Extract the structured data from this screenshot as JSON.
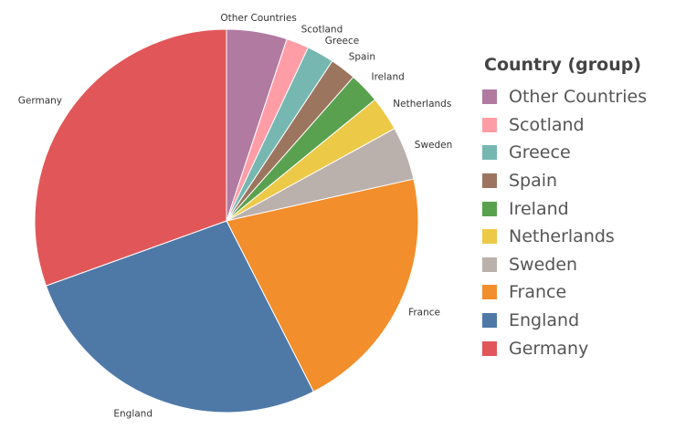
{
  "chart_data": {
    "type": "pie",
    "legend_title": "Country (group)",
    "legend_position": "right",
    "slices": [
      {
        "label": "Other Countries",
        "value": 5.1,
        "color": "#b07aa1"
      },
      {
        "label": "Scotland",
        "value": 1.9,
        "color": "#ff9da7"
      },
      {
        "label": "Greece",
        "value": 2.3,
        "color": "#76b7b2"
      },
      {
        "label": "Spain",
        "value": 2.2,
        "color": "#9c755f"
      },
      {
        "label": "Ireland",
        "value": 2.6,
        "color": "#59a14f"
      },
      {
        "label": "Netherlands",
        "value": 2.9,
        "color": "#edc948"
      },
      {
        "label": "Sweden",
        "value": 4.5,
        "color": "#bab0ac"
      },
      {
        "label": "France",
        "value": 21.0,
        "color": "#f28e2b"
      },
      {
        "label": "England",
        "value": 27.0,
        "color": "#4e79a7"
      },
      {
        "label": "Germany",
        "value": 30.5,
        "color": "#e15759"
      }
    ]
  }
}
